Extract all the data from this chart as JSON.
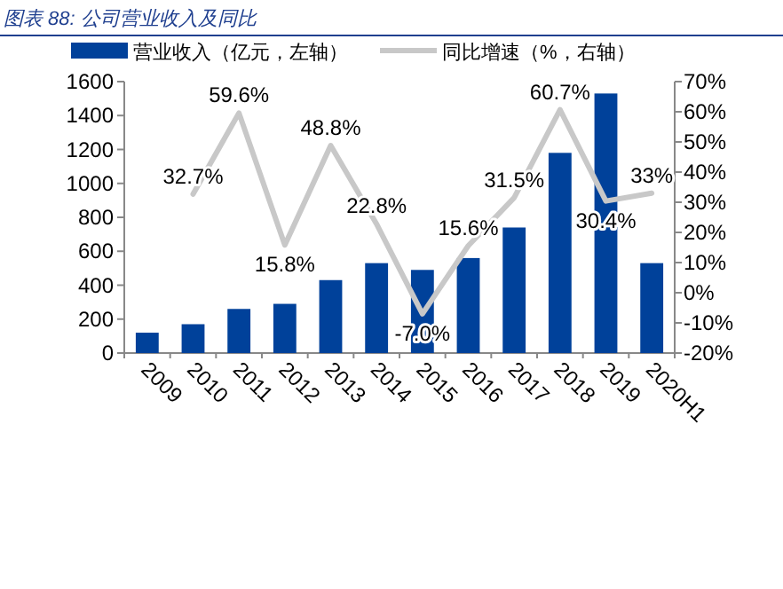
{
  "chart_data": {
    "type": "bar",
    "title": "图表 88: 公司营业收入及同比",
    "legend": "top",
    "categories": [
      "2009",
      "2010",
      "2011",
      "2012",
      "2013",
      "2014",
      "2015",
      "2016",
      "2017",
      "2018",
      "2019",
      "2020H1"
    ],
    "series": [
      {
        "name": "营业收入（亿元，左轴）",
        "color": "#00419a",
        "values": [
          120,
          170,
          260,
          290,
          430,
          530,
          490,
          560,
          740,
          1180,
          1530,
          530
        ]
      },
      {
        "name": "同比增速（%，右轴）",
        "type": "line",
        "axis": "y2",
        "color": "#c8c8c8",
        "values": [
          null,
          32.7,
          59.6,
          15.8,
          48.8,
          22.8,
          -7.0,
          15.6,
          31.5,
          60.7,
          30.4,
          33
        ],
        "value_labels": [
          null,
          "32.7%",
          "59.6%",
          "15.8%",
          "48.8%",
          "22.8%",
          "-7.0%",
          "15.6%",
          "31.5%",
          "60.7%",
          "30.4%",
          "33%"
        ]
      }
    ],
    "ylim": [
      0,
      1600
    ],
    "yticks": [
      0,
      200,
      400,
      600,
      800,
      1000,
      1200,
      1400,
      1600
    ],
    "y2lim": [
      -20,
      70
    ],
    "y2ticks": [
      {
        "value": -20,
        "label": "-20%"
      },
      {
        "value": -10,
        "label": "-10%"
      },
      {
        "value": 0,
        "label": "0%"
      },
      {
        "value": 10,
        "label": "10%"
      },
      {
        "value": 20,
        "label": "20%"
      },
      {
        "value": 30,
        "label": "30%"
      },
      {
        "value": 40,
        "label": "40%"
      },
      {
        "value": 50,
        "label": "50%"
      },
      {
        "value": 60,
        "label": "60%"
      },
      {
        "value": 70,
        "label": "70%"
      }
    ]
  }
}
